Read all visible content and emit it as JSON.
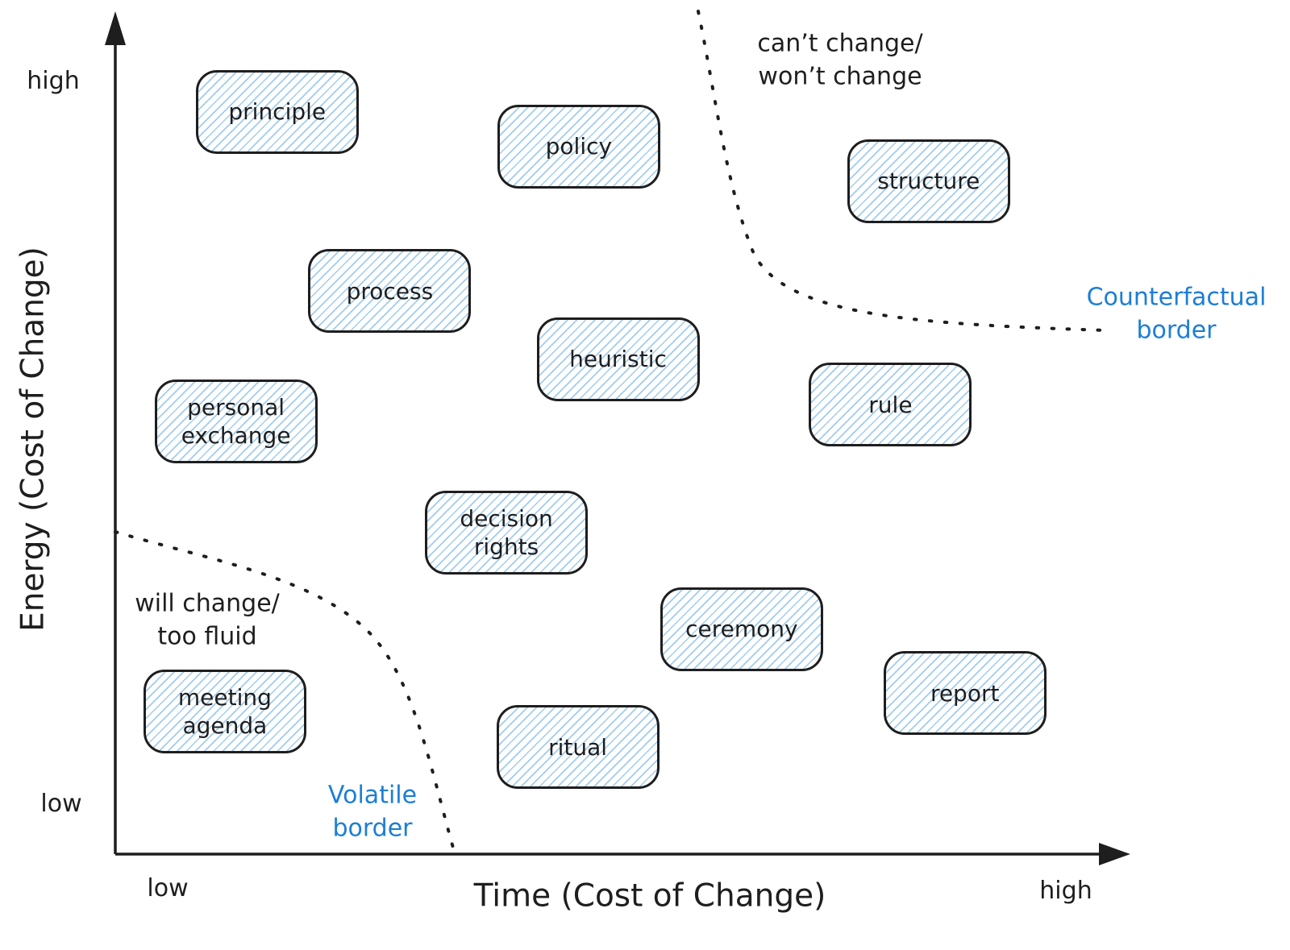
{
  "axes": {
    "x": {
      "title": "Time (Cost of Change)",
      "low_label": "low",
      "high_label": "high"
    },
    "y": {
      "title": "Energy (Cost of Change)",
      "low_label": "low",
      "high_label": "high"
    }
  },
  "annotations": {
    "top_right": "can’t change/\nwon’t change",
    "bottom_left": "will change/\ntoo fluid",
    "counterfactual_label": "Counterfactual\nborder",
    "volatile_label": "Volatile\nborder"
  },
  "colors": {
    "ink": "#1e1e1e",
    "accent_blue": "#1c7ed6",
    "box_hatch_blue": "#86bdeb"
  },
  "chart_data": {
    "type": "scatter",
    "title": "",
    "xlabel": "Time (Cost of Change)",
    "ylabel": "Energy (Cost of Change)",
    "x_range_labels": [
      "low",
      "high"
    ],
    "y_range_labels": [
      "low",
      "high"
    ],
    "grid": false,
    "points": [
      {
        "label": "principle",
        "x": 16.1,
        "y": 90.3
      },
      {
        "label": "policy",
        "x": 46.1,
        "y": 86.1
      },
      {
        "label": "structure",
        "x": 80.9,
        "y": 81.9
      },
      {
        "label": "process",
        "x": 27.3,
        "y": 68.5
      },
      {
        "label": "heuristic",
        "x": 50.0,
        "y": 60.2
      },
      {
        "label": "rule",
        "x": 77.1,
        "y": 54.7
      },
      {
        "label": "personal\nexchange",
        "x": 12.0,
        "y": 52.6
      },
      {
        "label": "decision\nrights",
        "x": 38.9,
        "y": 39.1
      },
      {
        "label": "ceremony",
        "x": 62.3,
        "y": 27.4
      },
      {
        "label": "meeting\nagenda",
        "x": 10.9,
        "y": 17.4
      },
      {
        "label": "ritual",
        "x": 46.0,
        "y": 13.0
      },
      {
        "label": "report",
        "x": 84.5,
        "y": 19.6
      }
    ],
    "borders": [
      {
        "name": "Volatile border",
        "region": "bottom-left",
        "meaning": "will change/too fluid",
        "style": "dotted"
      },
      {
        "name": "Counterfactual border",
        "region": "top-right",
        "meaning": "can’t change/won’t change",
        "style": "dotted"
      }
    ]
  }
}
